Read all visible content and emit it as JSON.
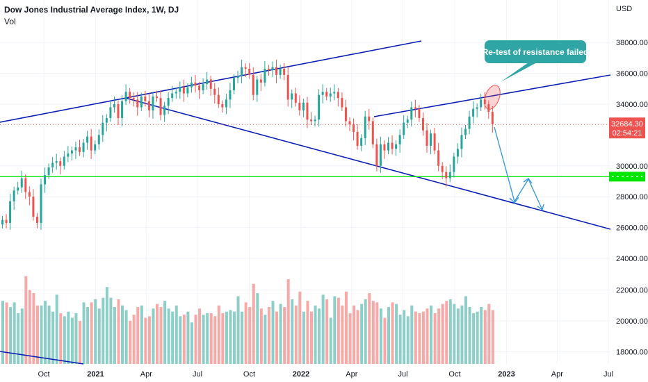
{
  "chart_data": {
    "type": "candlestick",
    "title": "Dow Jones Industrial Average Index, 1W, DJ",
    "subtitle": "Vol",
    "currency": "USD",
    "y_ticks": [
      38000,
      36000,
      34000,
      30000,
      28000,
      26000,
      24000,
      22000,
      20000,
      18000
    ],
    "y_tick_labels": [
      "38000.00",
      "36000.00",
      "34000.00",
      "30000.00",
      "28000.00",
      "26000.00",
      "24000.00",
      "22000.00",
      "20000.00",
      "18000.00"
    ],
    "x_ticks": [
      "2020-10-01",
      "2021-01-01",
      "2021-04-01",
      "2021-07-01",
      "2021-10-01",
      "2022-01-01",
      "2022-04-01",
      "2022-07-01",
      "2022-10-01",
      "2023-01-01",
      "2023-04-01",
      "2023-07-01"
    ],
    "x_tick_labels": [
      "Oct",
      "2021",
      "Apr",
      "Jul",
      "Oct",
      "2022",
      "Apr",
      "Jul",
      "Oct",
      "2023",
      "Apr",
      "Jul"
    ],
    "last_price": "32684.30",
    "countdown": "02:54:21",
    "horizontal_level": 29300,
    "annotation": "Re-test of resistance failed",
    "up_color": "#26a69a",
    "down_color": "#ef5350",
    "closes": [
      26500,
      26300,
      27700,
      28400,
      28600,
      29200,
      28300,
      28000,
      26700,
      26300,
      28800,
      29400,
      29900,
      30200,
      30300,
      30000,
      30600,
      30800,
      31000,
      31200,
      30900,
      31500,
      31900,
      31000,
      31400,
      32000,
      32800,
      33100,
      33800,
      34000,
      33100,
      34200,
      34800,
      34400,
      34300,
      33800,
      34500,
      34200,
      33600,
      34500,
      34400,
      33300,
      33900,
      34400,
      34700,
      34800,
      35100,
      34700,
      35100,
      35400,
      35200,
      34900,
      35300,
      35600,
      35000,
      34600,
      34000,
      33800,
      34300,
      34900,
      35700,
      35800,
      36400,
      36300,
      35900,
      34600,
      35600,
      35400,
      36300,
      36200,
      36400,
      35900,
      36300,
      35900,
      34300,
      34700,
      34100,
      33600,
      34100,
      33000,
      32900,
      33000,
      34600,
      34800,
      34500,
      34700,
      34800,
      34400,
      33800,
      32900,
      32700,
      32200,
      31300,
      31800,
      33200,
      32900,
      31400,
      30000,
      31400,
      31000,
      31500,
      31100,
      31400,
      32000,
      32800,
      33000,
      33800,
      33700,
      33100,
      32300,
      31300,
      32100,
      31000,
      30000,
      29600,
      29200,
      29600,
      30600,
      31100,
      32000,
      32400,
      33200,
      33700,
      33800,
      34300,
      34000,
      33500,
      32700
    ],
    "volumes": [
      21300,
      21200,
      20900,
      21200,
      20500,
      20800,
      22900,
      22000,
      21800,
      21000,
      21000,
      21300,
      21000,
      20600,
      21700,
      20500,
      20300,
      20600,
      20200,
      20500,
      20000,
      21200,
      20900,
      21200,
      21400,
      20800,
      21500,
      22200,
      21500,
      20900,
      21400,
      21000,
      20700,
      20000,
      20400,
      20900,
      21000,
      20200,
      20300,
      20800,
      21100,
      20900,
      21300,
      20800,
      20600,
      21000,
      20300,
      20400,
      20600,
      19900,
      20400,
      20800,
      20400,
      20500,
      20500,
      20300,
      21000,
      20500,
      20600,
      20700,
      20600,
      21600,
      20600,
      21200,
      20900,
      22400,
      21800,
      20800,
      20400,
      20900,
      21300,
      20600,
      21100,
      20900,
      22700,
      21400,
      21000,
      21900,
      20600,
      21300,
      20600,
      21000,
      20800,
      21700,
      21400,
      20200,
      21600,
      21500,
      21000,
      21900,
      20500,
      21000,
      20700,
      21100,
      21400,
      21800,
      21300,
      21200,
      20800,
      20200,
      20900,
      21200,
      21100,
      20400,
      20700,
      20300,
      21000,
      20600,
      20500,
      20600,
      20800,
      21000,
      20500,
      20800,
      21100,
      21300,
      21400,
      21100,
      20800,
      21000,
      21600,
      20900,
      20500,
      20600,
      20900,
      20700,
      21100,
      20700
    ]
  }
}
